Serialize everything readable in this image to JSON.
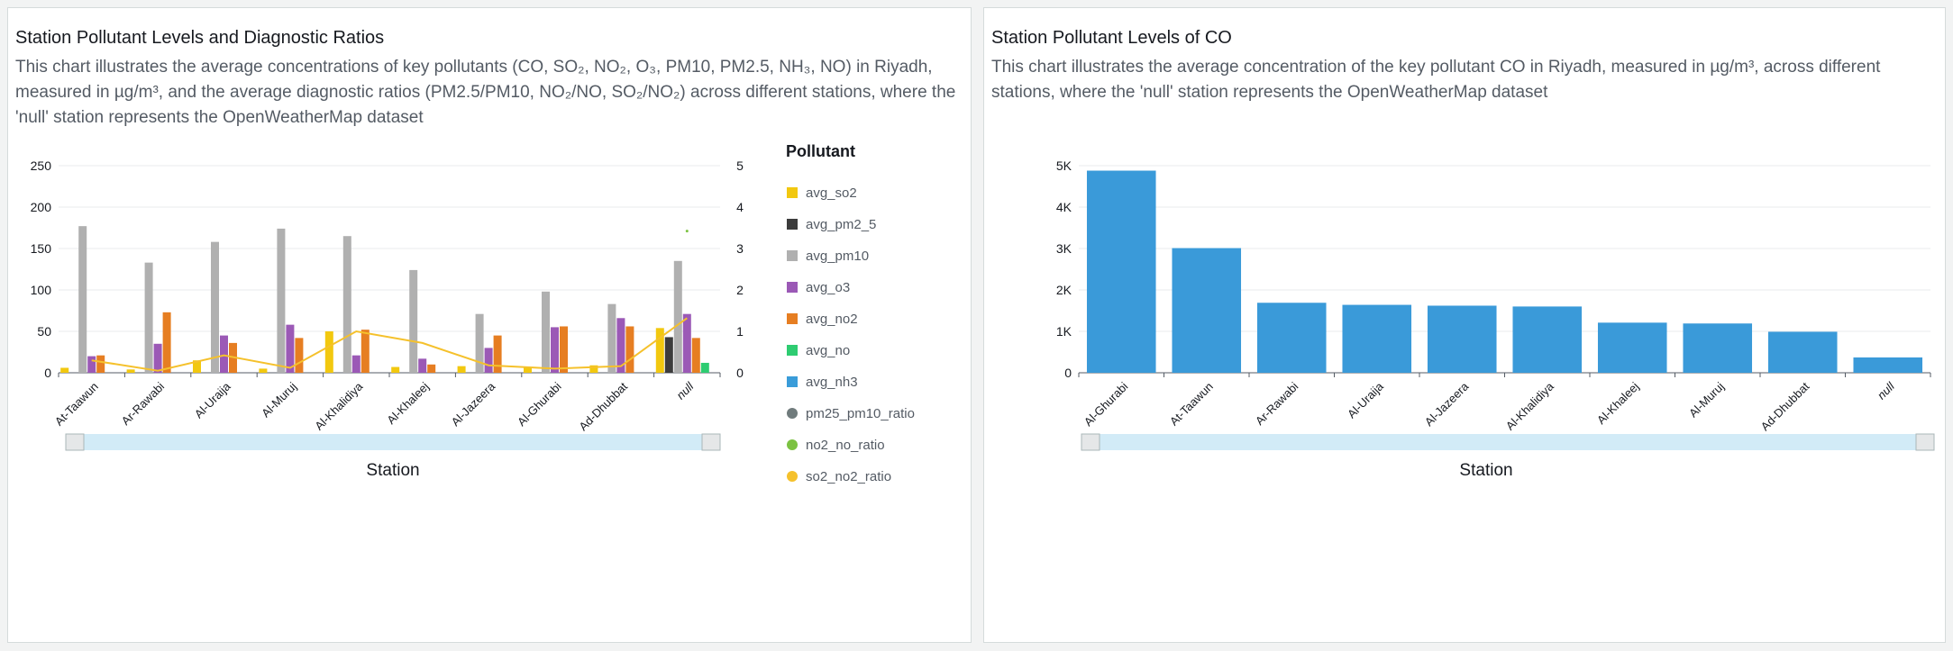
{
  "left": {
    "title": "Station Pollutant Levels and Diagnostic Ratios",
    "subtitle": "This chart illustrates the average concentrations of key pollutants (CO, SO₂, NO₂, O₃, PM10, PM2.5, NH₃, NO) in Riyadh, measured in µg/m³, and the average diagnostic ratios (PM2.5/PM10, NO₂/NO, SO₂/NO₂) across different stations, where the 'null' station represents the OpenWeatherMap dataset",
    "legend_title": "Pollutant"
  },
  "right": {
    "title": "Station Pollutant Levels of CO",
    "subtitle": "This chart illustrates the average concentration of the key pollutant CO in Riyadh, measured in µg/m³, across different stations, where the 'null' station represents the OpenWeatherMap dataset"
  },
  "chart_data": [
    {
      "type": "bar",
      "title": "Station Pollutant Levels and Diagnostic Ratios",
      "xlabel": "Station",
      "ylabel": "",
      "ylim": [
        0,
        250
      ],
      "y_ticks": [
        0,
        50,
        100,
        150,
        200,
        250
      ],
      "y2lim": [
        0,
        5
      ],
      "y2_ticks": [
        0,
        1,
        2,
        3,
        4,
        5
      ],
      "legend_title": "Pollutant",
      "legend_position": "right",
      "grid": true,
      "categories": [
        "At-Taawun",
        "Ar-Rawabi",
        "Al-Uraija",
        "Al-Muruj",
        "Al-Khalidiya",
        "Al-Khaleej",
        "Al-Jazeera",
        "Al-Ghurabi",
        "Ad-Dhubbat",
        "null"
      ],
      "series": [
        {
          "name": "avg_so2",
          "color": "#f2c80f",
          "values": [
            6,
            4,
            15,
            5,
            50,
            7,
            8,
            6,
            9,
            54
          ]
        },
        {
          "name": "avg_pm2_5",
          "color": "#3c3c3c",
          "values": [
            0,
            0,
            0,
            0,
            0,
            0,
            0,
            0,
            0,
            43
          ]
        },
        {
          "name": "avg_pm10",
          "color": "#b0b0b0",
          "values": [
            177,
            133,
            158,
            174,
            165,
            124,
            71,
            98,
            83,
            135
          ]
        },
        {
          "name": "avg_o3",
          "color": "#9b59b6",
          "values": [
            20,
            35,
            45,
            58,
            21,
            17,
            30,
            55,
            66,
            71
          ]
        },
        {
          "name": "avg_no2",
          "color": "#e67e22",
          "values": [
            21,
            73,
            36,
            42,
            52,
            10,
            45,
            56,
            56,
            42
          ]
        },
        {
          "name": "avg_no",
          "color": "#2ecc71",
          "values": [
            0,
            0,
            0,
            0,
            0,
            0,
            0,
            0,
            0,
            12
          ]
        },
        {
          "name": "avg_nh3",
          "color": "#3a9cd9",
          "values": [
            0,
            0,
            0,
            0,
            0,
            0,
            0,
            0,
            0,
            0
          ]
        }
      ],
      "line_series": [
        {
          "name": "pm25_pm10_ratio",
          "color": "#707b7c",
          "axis": "right",
          "values": [
            null,
            null,
            null,
            null,
            null,
            null,
            null,
            null,
            null,
            null
          ]
        },
        {
          "name": "no2_no_ratio",
          "color": "#7cc242",
          "axis": "right",
          "values": [
            null,
            null,
            null,
            null,
            null,
            null,
            null,
            null,
            null,
            3.42
          ]
        },
        {
          "name": "so2_no2_ratio",
          "color": "#f5c12c",
          "axis": "right",
          "values": [
            0.3,
            0.05,
            0.42,
            0.12,
            1.0,
            0.72,
            0.18,
            0.1,
            0.16,
            1.32
          ]
        }
      ]
    },
    {
      "type": "bar",
      "title": "Station Pollutant Levels of CO",
      "xlabel": "Station",
      "ylabel": "",
      "ylim": [
        0,
        5000
      ],
      "y_ticks": [
        0,
        1000,
        2000,
        3000,
        4000,
        5000
      ],
      "y_tick_labels": [
        "0",
        "1K",
        "2K",
        "3K",
        "4K",
        "5K"
      ],
      "grid": true,
      "color": "#3a9ad9",
      "categories": [
        "Al-Ghurabi",
        "At-Taawun",
        "Ar-Rawabi",
        "Al-Uraija",
        "Al-Jazeera",
        "Al-Khalidiya",
        "Al-Khaleej",
        "Al-Muruj",
        "Ad-Dhubbat",
        "null"
      ],
      "values": [
        4880,
        3010,
        1690,
        1640,
        1620,
        1600,
        1210,
        1190,
        990,
        370
      ]
    }
  ]
}
